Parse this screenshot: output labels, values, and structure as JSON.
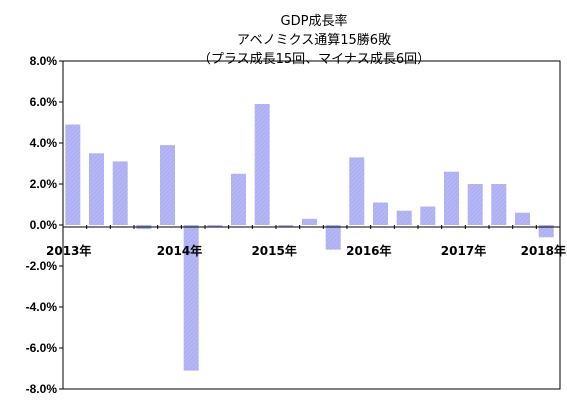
{
  "chart_data": {
    "type": "bar",
    "title_lines": [
      "GDP成長率",
      "アベノミクス通算15勝6敗",
      "（プラス成長15回、マイナス成長6回）"
    ],
    "xlabel": "",
    "ylabel": "",
    "ylim": [
      -8.0,
      8.0
    ],
    "y_ticks": [
      "8.0%",
      "6.0%",
      "4.0%",
      "2.0%",
      "0.0%",
      "-2.0%",
      "-4.0%",
      "-6.0%",
      "-8.0%"
    ],
    "x_tick_labels": [
      "2013年",
      "2014年",
      "2015年",
      "2016年",
      "2017年",
      "2018年"
    ],
    "legend": "none",
    "grid": false,
    "bar_color": "#c8a0f5",
    "bar_stripe_color": "#8fd0f0",
    "series": [
      {
        "values": [
          4.9,
          3.5,
          3.1,
          -0.2,
          3.9,
          -7.1,
          -0.1,
          2.5,
          5.9,
          -0.1,
          0.3,
          -1.2,
          3.3,
          1.1,
          0.7,
          0.9,
          2.6,
          2.0,
          2.0,
          0.6,
          -0.6
        ]
      }
    ]
  }
}
